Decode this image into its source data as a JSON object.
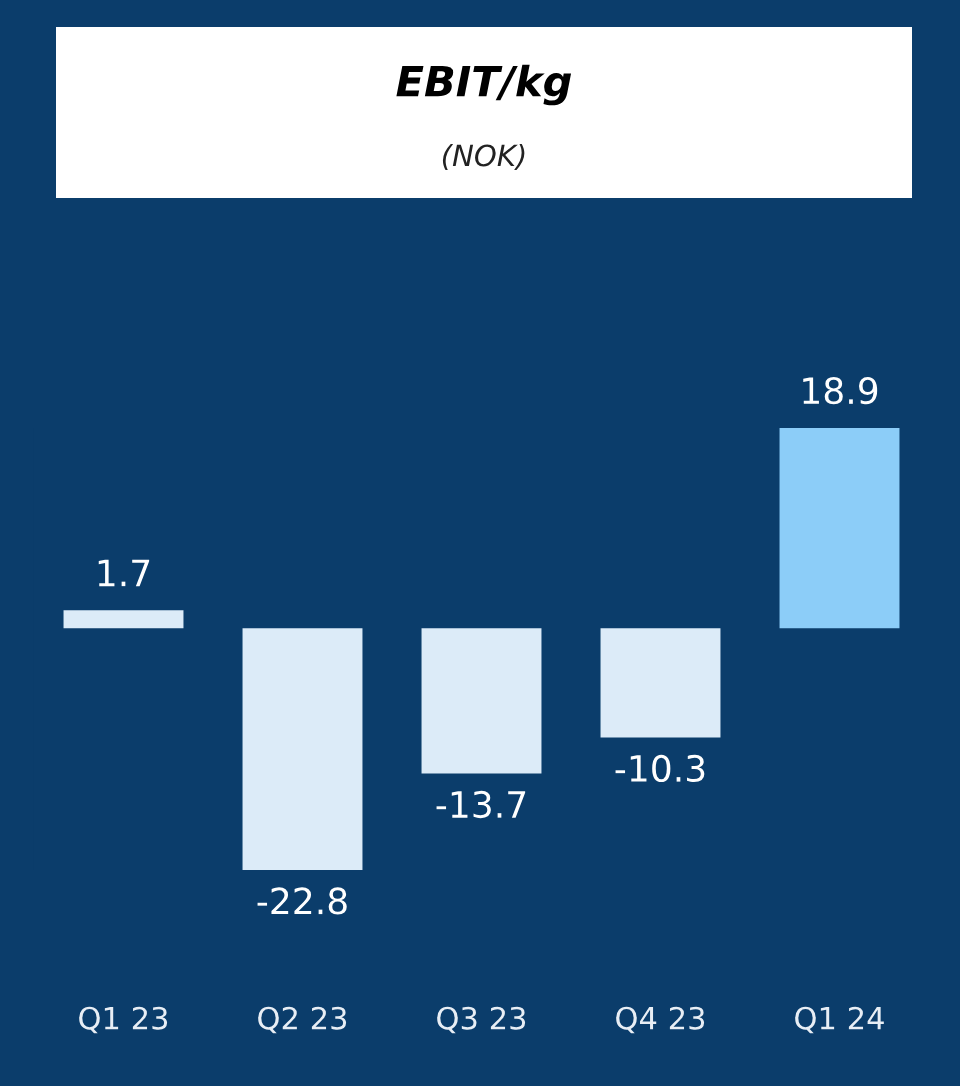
{
  "chart_data": {
    "type": "bar",
    "title": "EBIT/kg",
    "subtitle": "(NOK)",
    "categories": [
      "Q1 23",
      "Q2 23",
      "Q3 23",
      "Q4 23",
      "Q1 24"
    ],
    "values": [
      1.7,
      -22.8,
      -13.7,
      -10.3,
      18.9
    ],
    "colors": [
      "#dcebf8",
      "#dcebf8",
      "#dcebf8",
      "#dcebf8",
      "#8ccdf8"
    ],
    "data_labels": true,
    "grid": false,
    "legend": false,
    "tick_labels": "x"
  }
}
